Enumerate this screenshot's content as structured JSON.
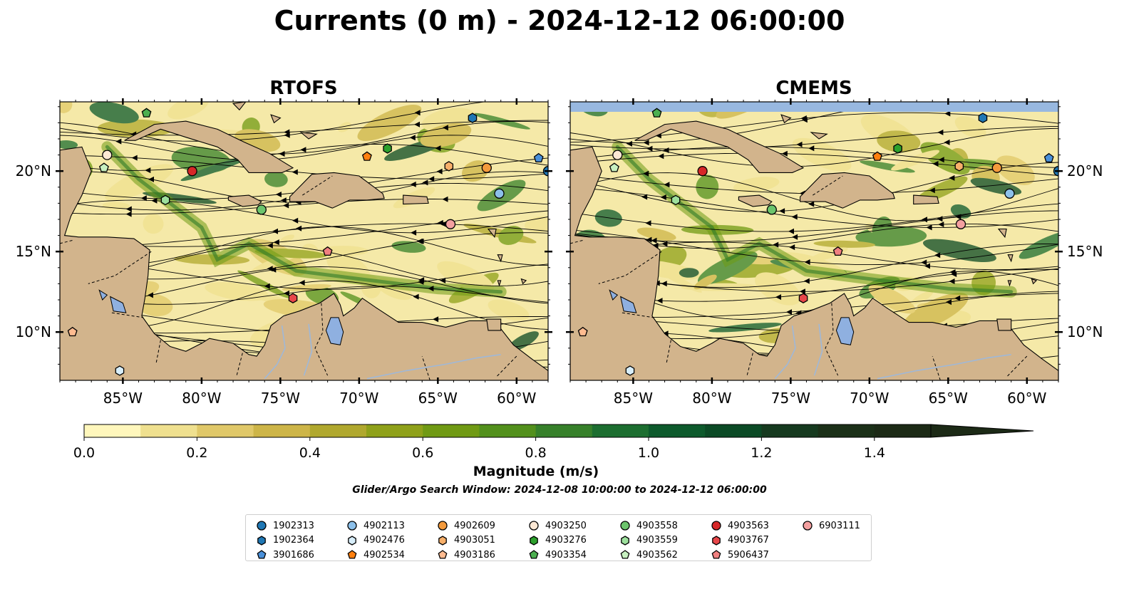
{
  "title": "Currents (0 m) - 2024-12-12 06:00:00",
  "panels": [
    {
      "title": "RTOFS",
      "top_band": false
    },
    {
      "title": "CMEMS",
      "top_band": true
    }
  ],
  "axes": {
    "lon_ticks": [
      "85°W",
      "80°W",
      "75°W",
      "70°W",
      "65°W",
      "60°W"
    ],
    "lat_ticks": [
      "20°N",
      "15°N",
      "10°N"
    ]
  },
  "colorbar": {
    "label": "Magnitude (m/s)",
    "ticks": [
      "0.0",
      "0.2",
      "0.4",
      "0.6",
      "0.8",
      "1.0",
      "1.2",
      "1.4"
    ],
    "colors": [
      "#fff7bc",
      "#efe08f",
      "#e0c869",
      "#cdb548",
      "#b0a82e",
      "#8fa11a",
      "#709a14",
      "#52901c",
      "#36802a",
      "#1c6e30",
      "#0d5a2c",
      "#0b4a25",
      "#163a1f",
      "#1b3018",
      "#1c2a16"
    ],
    "extend": "max"
  },
  "search_window": "Glider/Argo Search Window: 2024-12-08 10:00:00 to 2024-12-12 06:00:00",
  "colors": {
    "land": "#d2b48c",
    "lake": "#8fb0e0",
    "river": "#9fb8d8",
    "band": "#98b8e0"
  },
  "floats": [
    {
      "id": "1902313",
      "marker": "circle",
      "color": "#1f77b4",
      "lon": -58.0,
      "lat": 20.0
    },
    {
      "id": "1902364",
      "marker": "hexagon",
      "color": "#1f77b4",
      "lon": -62.8,
      "lat": 23.3
    },
    {
      "id": "3901686",
      "marker": "pentagon",
      "color": "#4a90d9",
      "lon": -58.6,
      "lat": 20.8
    },
    {
      "id": "4902113",
      "marker": "circle",
      "color": "#8cc0ea",
      "lon": -61.1,
      "lat": 18.6
    },
    {
      "id": "4902476",
      "marker": "hexagon",
      "color": "#d8eefa",
      "lon": -85.2,
      "lat": 7.6
    },
    {
      "id": "4902534",
      "marker": "pentagon",
      "color": "#ff7f0e",
      "lon": -69.5,
      "lat": 20.9
    },
    {
      "id": "4902609",
      "marker": "circle",
      "color": "#f39a3c",
      "lon": -61.9,
      "lat": 20.2
    },
    {
      "id": "4903051",
      "marker": "hexagon",
      "color": "#f8b06a",
      "lon": -64.3,
      "lat": 20.3
    },
    {
      "id": "4903186",
      "marker": "pentagon",
      "color": "#ffbb90",
      "lon": -88.2,
      "lat": 10.0
    },
    {
      "id": "4903250",
      "marker": "circle",
      "color": "#fde8d4",
      "lon": -86.0,
      "lat": 21.0
    },
    {
      "id": "4903276",
      "marker": "hexagon",
      "color": "#2ca02c",
      "lon": -68.2,
      "lat": 21.4
    },
    {
      "id": "4903354",
      "marker": "pentagon",
      "color": "#4caf50",
      "lon": -83.5,
      "lat": 23.6
    },
    {
      "id": "4903558",
      "marker": "circle",
      "color": "#6cc46c",
      "lon": -76.2,
      "lat": 17.6
    },
    {
      "id": "4903559",
      "marker": "hexagon",
      "color": "#9de09d",
      "lon": -82.3,
      "lat": 18.2
    },
    {
      "id": "4903562",
      "marker": "pentagon",
      "color": "#c7f0c0",
      "lon": -86.2,
      "lat": 20.2
    },
    {
      "id": "4903563",
      "marker": "circle",
      "color": "#d62728",
      "lon": -80.6,
      "lat": 20.0
    },
    {
      "id": "4903767",
      "marker": "hexagon",
      "color": "#e8474a",
      "lon": -74.2,
      "lat": 12.1
    },
    {
      "id": "5906437",
      "marker": "pentagon",
      "color": "#f08080",
      "lon": -72.0,
      "lat": 15.0
    },
    {
      "id": "6903111",
      "marker": "circle",
      "color": "#f4a0a0",
      "lon": -64.2,
      "lat": 16.7
    }
  ]
}
